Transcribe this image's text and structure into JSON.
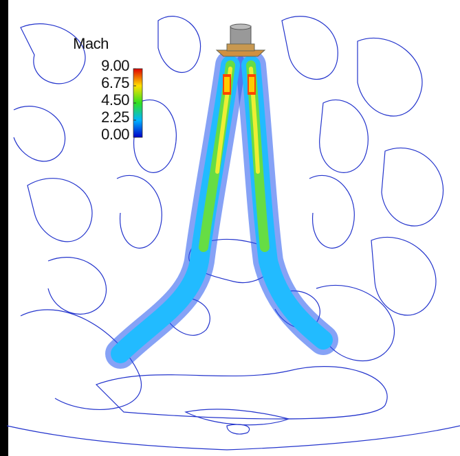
{
  "legend": {
    "title": "Mach",
    "ticks": [
      {
        "value": 9,
        "label": "9.00"
      },
      {
        "value": 6.75,
        "label": "6.75"
      },
      {
        "value": 4.5,
        "label": "4.50"
      },
      {
        "value": 2.25,
        "label": "2.25"
      },
      {
        "value": 0,
        "label": "0.00"
      }
    ]
  }
}
